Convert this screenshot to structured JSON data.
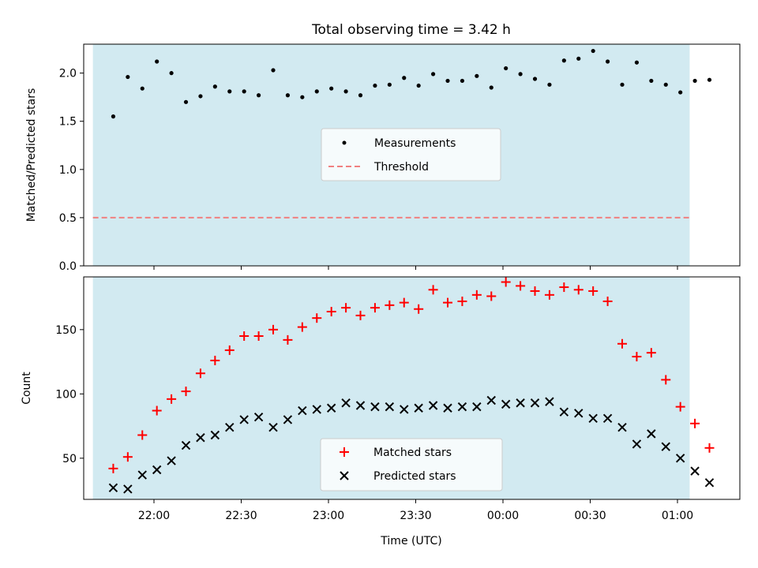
{
  "chart_data": [
    {
      "type": "scatter",
      "title": "Total observing time = 3.42 h",
      "ylabel": "Matched/Predicted stars",
      "xlabel": "",
      "x_ticks": [
        "22:00",
        "22:30",
        "23:00",
        "23:30",
        "00:00",
        "00:30",
        "01:00"
      ],
      "y_ticks": [
        "0.0",
        "0.5",
        "1.0",
        "1.5",
        "2.0"
      ],
      "ylim": [
        0,
        2.3
      ],
      "shaded_span": [
        21.65,
        1.07
      ],
      "series": [
        {
          "name": "Measurements",
          "color": "#000000",
          "marker": "dot",
          "x": [
            "21:46",
            "21:51",
            "21:56",
            "22:01",
            "22:06",
            "22:11",
            "22:16",
            "22:21",
            "22:26",
            "22:31",
            "22:36",
            "22:41",
            "22:46",
            "22:51",
            "22:56",
            "23:01",
            "23:06",
            "23:11",
            "23:16",
            "23:21",
            "23:26",
            "23:31",
            "23:36",
            "23:41",
            "23:46",
            "23:51",
            "23:56",
            "00:01",
            "00:06",
            "00:11",
            "00:16",
            "00:21",
            "00:26",
            "00:31",
            "00:36",
            "00:41",
            "00:46",
            "00:51",
            "00:56",
            "01:01",
            "01:06",
            "01:11"
          ],
          "y": [
            1.55,
            1.96,
            1.84,
            2.12,
            2.0,
            1.7,
            1.76,
            1.86,
            1.81,
            1.81,
            1.77,
            2.03,
            1.77,
            1.75,
            1.81,
            1.84,
            1.81,
            1.77,
            1.87,
            1.88,
            1.95,
            1.87,
            1.99,
            1.92,
            1.92,
            1.97,
            1.85,
            2.05,
            1.99,
            1.94,
            1.88,
            2.13,
            2.15,
            2.23,
            2.12,
            1.88,
            2.11,
            1.92,
            1.88,
            1.8,
            1.92,
            1.93
          ]
        },
        {
          "name": "Threshold",
          "color": "#f08080",
          "style": "dashed",
          "value": 0.5
        }
      ],
      "legend": "center"
    },
    {
      "type": "scatter",
      "title": "",
      "ylabel": "Count",
      "xlabel": "Time (UTC)",
      "x_ticks": [
        "22:00",
        "22:30",
        "23:00",
        "23:30",
        "00:00",
        "00:30",
        "01:00"
      ],
      "y_ticks": [
        "50",
        "100",
        "150"
      ],
      "ylim": [
        18,
        191
      ],
      "shaded_span": [
        21.65,
        1.07
      ],
      "x": [
        "21:46",
        "21:51",
        "21:56",
        "22:01",
        "22:06",
        "22:11",
        "22:16",
        "22:21",
        "22:26",
        "22:31",
        "22:36",
        "22:41",
        "22:46",
        "22:51",
        "22:56",
        "23:01",
        "23:06",
        "23:11",
        "23:16",
        "23:21",
        "23:26",
        "23:31",
        "23:36",
        "23:41",
        "23:46",
        "23:51",
        "23:56",
        "00:01",
        "00:06",
        "00:11",
        "00:16",
        "00:21",
        "00:26",
        "00:31",
        "00:36",
        "00:41",
        "00:46",
        "00:51",
        "00:56",
        "01:01",
        "01:06",
        "01:11"
      ],
      "series": [
        {
          "name": "Matched stars",
          "color": "#ff0000",
          "marker": "plus",
          "values": [
            42,
            51,
            68,
            87,
            96,
            102,
            116,
            126,
            134,
            145,
            145,
            150,
            142,
            152,
            159,
            164,
            167,
            161,
            167,
            169,
            171,
            166,
            181,
            171,
            172,
            177,
            176,
            187,
            184,
            180,
            177,
            183,
            181,
            180,
            172,
            139,
            129,
            132,
            111,
            90,
            77,
            58
          ]
        },
        {
          "name": "Predicted stars",
          "color": "#000000",
          "marker": "x",
          "values": [
            27,
            26,
            37,
            41,
            48,
            60,
            66,
            68,
            74,
            80,
            82,
            74,
            80,
            87,
            88,
            89,
            93,
            91,
            90,
            90,
            88,
            89,
            91,
            89,
            90,
            90,
            95,
            92,
            93,
            93,
            94,
            86,
            85,
            81,
            81,
            74,
            61,
            69,
            59,
            50,
            40,
            31
          ]
        }
      ],
      "legend": "lower center"
    }
  ],
  "colors": {
    "shade": "#add8e6",
    "axis": "#000000"
  }
}
